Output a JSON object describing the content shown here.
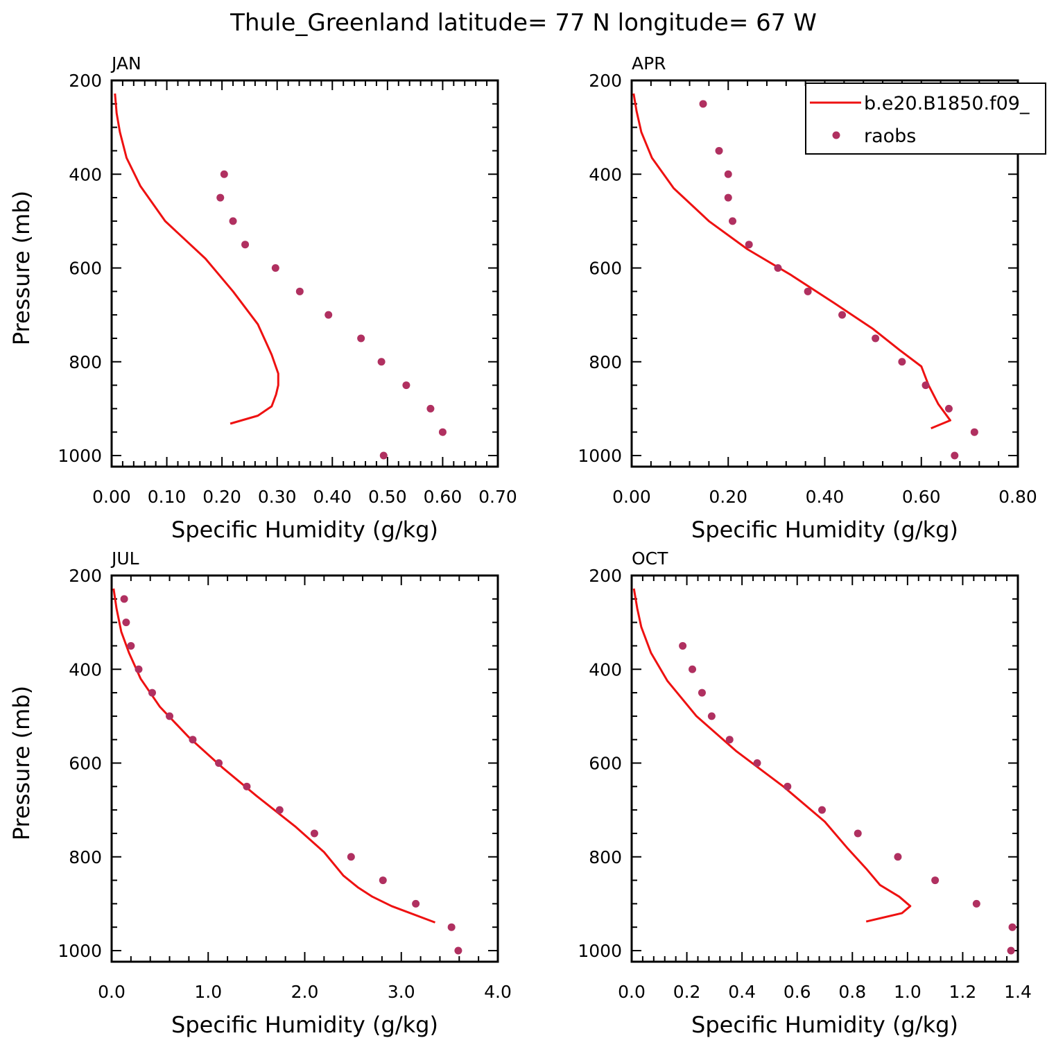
{
  "figure": {
    "title": "Thule_Greenland  latitude= 77 N longitude= 67 W"
  },
  "legend": {
    "model_label": "b.e20.B1850.f09_",
    "obs_label": "raobs"
  },
  "colors": {
    "model": "#ee1111",
    "obs": "#b03060"
  },
  "chart_data": [
    {
      "type": "line",
      "panel": "JAN",
      "xlabel": "Specific Humidity (g/kg)",
      "ylabel": "Pressure (mb)",
      "xlim": [
        0,
        0.7
      ],
      "ylim": [
        200,
        1025
      ],
      "y_inverted": true,
      "xticks": [
        "0.00",
        "0.10",
        "0.20",
        "0.30",
        "0.40",
        "0.50",
        "0.60",
        "0.70"
      ],
      "yticks": [
        "200",
        "400",
        "600",
        "800",
        "1000"
      ],
      "series": [
        {
          "name": "b.e20.B1850.f09_",
          "style": "line",
          "points": [
            [
              0.006,
              228
            ],
            [
              0.009,
              270
            ],
            [
              0.015,
              310
            ],
            [
              0.027,
              365
            ],
            [
              0.052,
              425
            ],
            [
              0.097,
              500
            ],
            [
              0.17,
              580
            ],
            [
              0.22,
              650
            ],
            [
              0.265,
              720
            ],
            [
              0.29,
              785
            ],
            [
              0.302,
              825
            ],
            [
              0.302,
              850
            ],
            [
              0.298,
              870
            ],
            [
              0.29,
              895
            ],
            [
              0.265,
              915
            ],
            [
              0.215,
              932
            ]
          ]
        },
        {
          "name": "raobs",
          "style": "marker",
          "points": [
            [
              0.204,
              400
            ],
            [
              0.197,
              450
            ],
            [
              0.22,
              500
            ],
            [
              0.242,
              550
            ],
            [
              0.297,
              600
            ],
            [
              0.341,
              650
            ],
            [
              0.393,
              700
            ],
            [
              0.452,
              750
            ],
            [
              0.489,
              800
            ],
            [
              0.534,
              850
            ],
            [
              0.578,
              900
            ],
            [
              0.6,
              950
            ],
            [
              0.493,
              1000
            ]
          ]
        }
      ]
    },
    {
      "type": "line",
      "panel": "APR",
      "xlabel": "Specific Humidity (g/kg)",
      "ylabel": "",
      "xlim": [
        0,
        0.8
      ],
      "ylim": [
        200,
        1025
      ],
      "y_inverted": true,
      "xticks": [
        "0.00",
        "0.20",
        "0.40",
        "0.60",
        "0.80"
      ],
      "yticks": [
        "200",
        "400",
        "600",
        "800",
        "1000"
      ],
      "series": [
        {
          "name": "b.e20.B1850.f09_",
          "style": "line",
          "points": [
            [
              0.004,
              228
            ],
            [
              0.01,
              265
            ],
            [
              0.02,
              310
            ],
            [
              0.042,
              365
            ],
            [
              0.087,
              430
            ],
            [
              0.16,
              500
            ],
            [
              0.24,
              560
            ],
            [
              0.33,
              615
            ],
            [
              0.42,
              675
            ],
            [
              0.5,
              730
            ],
            [
              0.555,
              775
            ],
            [
              0.6,
              810
            ],
            [
              0.615,
              850
            ],
            [
              0.635,
              890
            ],
            [
              0.66,
              925
            ],
            [
              0.62,
              942
            ]
          ]
        },
        {
          "name": "raobs",
          "style": "marker",
          "points": [
            [
              0.148,
              250
            ],
            [
              0.181,
              350
            ],
            [
              0.2,
              400
            ],
            [
              0.2,
              450
            ],
            [
              0.209,
              500
            ],
            [
              0.243,
              550
            ],
            [
              0.303,
              600
            ],
            [
              0.365,
              650
            ],
            [
              0.436,
              700
            ],
            [
              0.505,
              750
            ],
            [
              0.56,
              800
            ],
            [
              0.609,
              850
            ],
            [
              0.657,
              900
            ],
            [
              0.71,
              950
            ],
            [
              0.669,
              1000
            ]
          ]
        }
      ]
    },
    {
      "type": "line",
      "panel": "JUL",
      "xlabel": "Specific Humidity (g/kg)",
      "ylabel": "Pressure (mb)",
      "xlim": [
        0,
        4.0
      ],
      "ylim": [
        200,
        1025
      ],
      "y_inverted": true,
      "xticks": [
        "0.0",
        "1.0",
        "2.0",
        "3.0",
        "4.0"
      ],
      "yticks": [
        "200",
        "400",
        "600",
        "800",
        "1000"
      ],
      "series": [
        {
          "name": "b.e20.B1850.f09_",
          "style": "line",
          "points": [
            [
              0.02,
              228
            ],
            [
              0.05,
              270
            ],
            [
              0.1,
              320
            ],
            [
              0.18,
              365
            ],
            [
              0.3,
              420
            ],
            [
              0.5,
              480
            ],
            [
              0.8,
              545
            ],
            [
              1.15,
              610
            ],
            [
              1.5,
              670
            ],
            [
              1.9,
              735
            ],
            [
              2.2,
              790
            ],
            [
              2.4,
              840
            ],
            [
              2.55,
              865
            ],
            [
              2.7,
              885
            ],
            [
              2.9,
              905
            ],
            [
              3.35,
              940
            ]
          ]
        },
        {
          "name": "raobs",
          "style": "marker",
          "points": [
            [
              0.13,
              250
            ],
            [
              0.15,
              300
            ],
            [
              0.2,
              350
            ],
            [
              0.28,
              400
            ],
            [
              0.42,
              450
            ],
            [
              0.6,
              500
            ],
            [
              0.84,
              550
            ],
            [
              1.11,
              600
            ],
            [
              1.4,
              650
            ],
            [
              1.74,
              700
            ],
            [
              2.1,
              750
            ],
            [
              2.48,
              800
            ],
            [
              2.81,
              850
            ],
            [
              3.15,
              900
            ],
            [
              3.52,
              950
            ],
            [
              3.59,
              1000
            ]
          ]
        }
      ]
    },
    {
      "type": "line",
      "panel": "OCT",
      "xlabel": "Specific Humidity (g/kg)",
      "ylabel": "",
      "xlim": [
        0,
        1.4
      ],
      "ylim": [
        200,
        1025
      ],
      "y_inverted": true,
      "xticks": [
        "0.0",
        "0.2",
        "0.4",
        "0.6",
        "0.8",
        "1.0",
        "1.2",
        "1.4"
      ],
      "yticks": [
        "200",
        "400",
        "600",
        "800",
        "1000"
      ],
      "series": [
        {
          "name": "b.e20.B1850.f09_",
          "style": "line",
          "points": [
            [
              0.008,
              228
            ],
            [
              0.02,
              270
            ],
            [
              0.035,
              310
            ],
            [
              0.07,
              365
            ],
            [
              0.13,
              425
            ],
            [
              0.235,
              500
            ],
            [
              0.38,
              575
            ],
            [
              0.55,
              650
            ],
            [
              0.7,
              725
            ],
            [
              0.78,
              780
            ],
            [
              0.85,
              825
            ],
            [
              0.9,
              860
            ],
            [
              0.97,
              885
            ],
            [
              1.01,
              905
            ],
            [
              0.98,
              920
            ],
            [
              0.85,
              938
            ]
          ]
        },
        {
          "name": "raobs",
          "style": "marker",
          "points": [
            [
              0.185,
              350
            ],
            [
              0.22,
              400
            ],
            [
              0.255,
              450
            ],
            [
              0.29,
              500
            ],
            [
              0.355,
              550
            ],
            [
              0.455,
              600
            ],
            [
              0.565,
              650
            ],
            [
              0.69,
              700
            ],
            [
              0.82,
              750
            ],
            [
              0.965,
              800
            ],
            [
              1.1,
              850
            ],
            [
              1.25,
              900
            ],
            [
              1.38,
              950
            ],
            [
              1.375,
              1000
            ]
          ]
        }
      ]
    }
  ]
}
